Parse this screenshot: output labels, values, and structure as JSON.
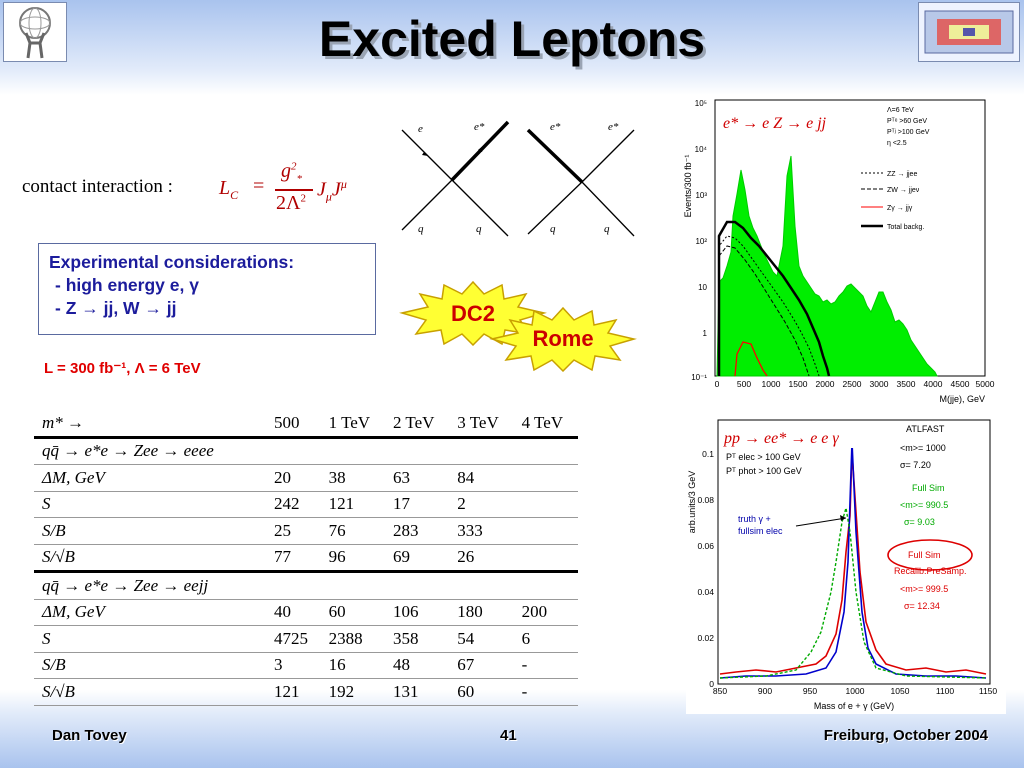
{
  "slide": {
    "title": "Excited Leptons",
    "contact_label": "contact interaction :",
    "formula": {
      "lhs": "L",
      "lhs_sub": "C",
      "num": "g",
      "num_sup": "2",
      "num_sub": "*",
      "den": "2Λ",
      "den_sup": "2",
      "rhs_j1": "J",
      "rhs_sub": "μ",
      "rhs_j2": "J",
      "rhs_sup": "μ"
    },
    "feynman": {
      "e": "e",
      "estar": "e*",
      "q": "q"
    },
    "considerations": {
      "heading": "Experimental considerations:",
      "line1": "- high energy e, γ",
      "line2": "- Z → jj, W → jj"
    },
    "luminosity": "L = 300 fb⁻¹, Λ = 6 TeV",
    "badges": {
      "dc2": "DC2",
      "rome": "Rome"
    }
  },
  "table": {
    "columns": [
      "m* →",
      "500",
      "1 TeV",
      "2 TeV",
      "3 TeV",
      "4 TeV"
    ],
    "section1": "qq̄ → e*e → Zee → eeee",
    "rows1": [
      [
        "ΔM, GeV",
        "20",
        "38",
        "63",
        "84",
        ""
      ],
      [
        "S",
        "242",
        "121",
        "17",
        "2",
        ""
      ],
      [
        "S/B",
        "25",
        "76",
        "283",
        "333",
        ""
      ],
      [
        "S/√B",
        "77",
        "96",
        "69",
        "26",
        ""
      ]
    ],
    "section2": "qq̄ → e*e → Zee → eejj",
    "rows2": [
      [
        "ΔM, GeV",
        "40",
        "60",
        "106",
        "180",
        "200"
      ],
      [
        "S",
        "4725",
        "2388",
        "358",
        "54",
        "6"
      ],
      [
        "S/B",
        "3",
        "16",
        "48",
        "67",
        "-"
      ],
      [
        "S/√B",
        "121",
        "192",
        "131",
        "60",
        "-"
      ]
    ]
  },
  "plot1": {
    "label": "e* → e Z → e jj",
    "ylabel": "Events/300 fb⁻¹",
    "xlabel": "M(jje), GeV",
    "xticks": [
      "0",
      "500",
      "1000",
      "1500",
      "2000",
      "2500",
      "3000",
      "3500",
      "4000",
      "4500",
      "5000"
    ],
    "yticks": [
      "10⁵",
      "10⁴",
      "10³",
      "10²",
      "10",
      "1",
      "10⁻¹"
    ],
    "legend": {
      "lambda": "Λ=6 TeV",
      "c1": "Pᵀᵉ >60 GeV",
      "c2": "Pᵀʲ >100 GeV",
      "c3": "η <2.5",
      "l1": "ZZ → jjee",
      "l2": "ZW → jjeν",
      "l3": "Zγ → jjγ",
      "l4": "Total backg."
    },
    "colors": {
      "signal": "#00ee00",
      "total": "#000000",
      "zgamma": "#ff0000"
    }
  },
  "plot2": {
    "label": "pp → ee* → e e γ",
    "ylabel": "arb.units/3 GeV",
    "xlabel": "Mass of e + γ (GeV)",
    "xticks": [
      "850",
      "900",
      "950",
      "1000",
      "1050",
      "1100",
      "1150"
    ],
    "yticks": [
      "0",
      "0.02",
      "0.04",
      "0.06",
      "0.08",
      "0.1"
    ],
    "atlfast": {
      "t1": "ATLFAST",
      "t2": "<m>= 1000",
      "t3": "σ= 7.20"
    },
    "cuts": {
      "c1": "Pᵀ elec > 100 GeV",
      "c2": "Pᵀ phot > 100 GeV"
    },
    "truth": {
      "t1": "truth γ +",
      "t2": "fullsim elec"
    },
    "fullsim": {
      "t1": "Full Sim",
      "t2": "<m>= 990.5",
      "t3": "σ= 9.03"
    },
    "recalib": {
      "t1": "Full Sim",
      "t2": "Recalib.PreSamp.",
      "t3": "<m>= 999.5",
      "t4": "σ= 12.34"
    }
  },
  "footer": {
    "author": "Dan Tovey",
    "page": "41",
    "venue": "Freiburg, October 2004"
  }
}
